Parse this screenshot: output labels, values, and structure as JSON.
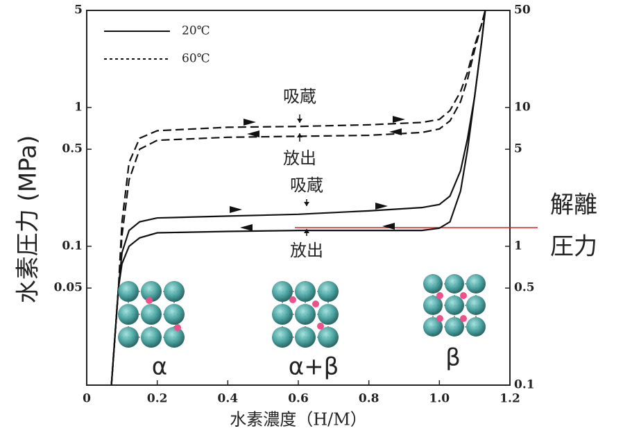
{
  "chart_data": {
    "type": "line",
    "xlabel": "水素濃度（H/M）",
    "ylabel": "水素圧力 (MPa)",
    "log_scale": true,
    "x": [
      0.07,
      0.09,
      0.1,
      0.12,
      0.15,
      0.2,
      0.4,
      0.6,
      0.8,
      0.95,
      1.0,
      1.03,
      1.06,
      1.08,
      1.1,
      1.12,
      1.13
    ],
    "series": [
      {
        "name": "20℃",
        "color": "#111111",
        "dash": false,
        "absorption": [
          0.01,
          0.05,
          0.09,
          0.13,
          0.15,
          0.16,
          0.165,
          0.17,
          0.18,
          0.19,
          0.2,
          0.23,
          0.35,
          0.6,
          1.2,
          3,
          5
        ],
        "desorption": [
          0.01,
          0.05,
          0.075,
          0.1,
          0.115,
          0.125,
          0.128,
          0.13,
          0.13,
          0.13,
          0.135,
          0.15,
          0.25,
          0.5,
          1.2,
          3,
          5
        ]
      },
      {
        "name": "60℃",
        "color": "#111111",
        "dash": true,
        "absorption": [
          0.01,
          0.05,
          0.15,
          0.4,
          0.6,
          0.68,
          0.72,
          0.73,
          0.75,
          0.78,
          0.82,
          0.95,
          1.3,
          1.8,
          2.8,
          4,
          5
        ],
        "desorption": [
          0.01,
          0.05,
          0.12,
          0.3,
          0.5,
          0.58,
          0.61,
          0.62,
          0.63,
          0.66,
          0.7,
          0.8,
          1.1,
          1.6,
          2.6,
          4,
          5
        ]
      }
    ],
    "xlim": [
      0,
      1.2
    ],
    "xticks": [
      0,
      0.2,
      0.4,
      0.6,
      0.8,
      {
        "value": 1,
        "label": "1.0"
      },
      1.2
    ],
    "ylim": [
      0.01,
      5
    ],
    "yticks": [
      0.05,
      0.1,
      0.5,
      1,
      5
    ],
    "y2lim": [
      0.1,
      50
    ],
    "y2ticks": [
      0.1,
      0.5,
      1,
      5,
      10,
      50
    ],
    "annotations": [
      "吸蔵",
      "放出",
      "吸蔵",
      "放出"
    ],
    "phase_labels": [
      "α",
      "α+β",
      "β"
    ],
    "dissociation_pressure_label": [
      "解離",
      "圧力"
    ]
  }
}
